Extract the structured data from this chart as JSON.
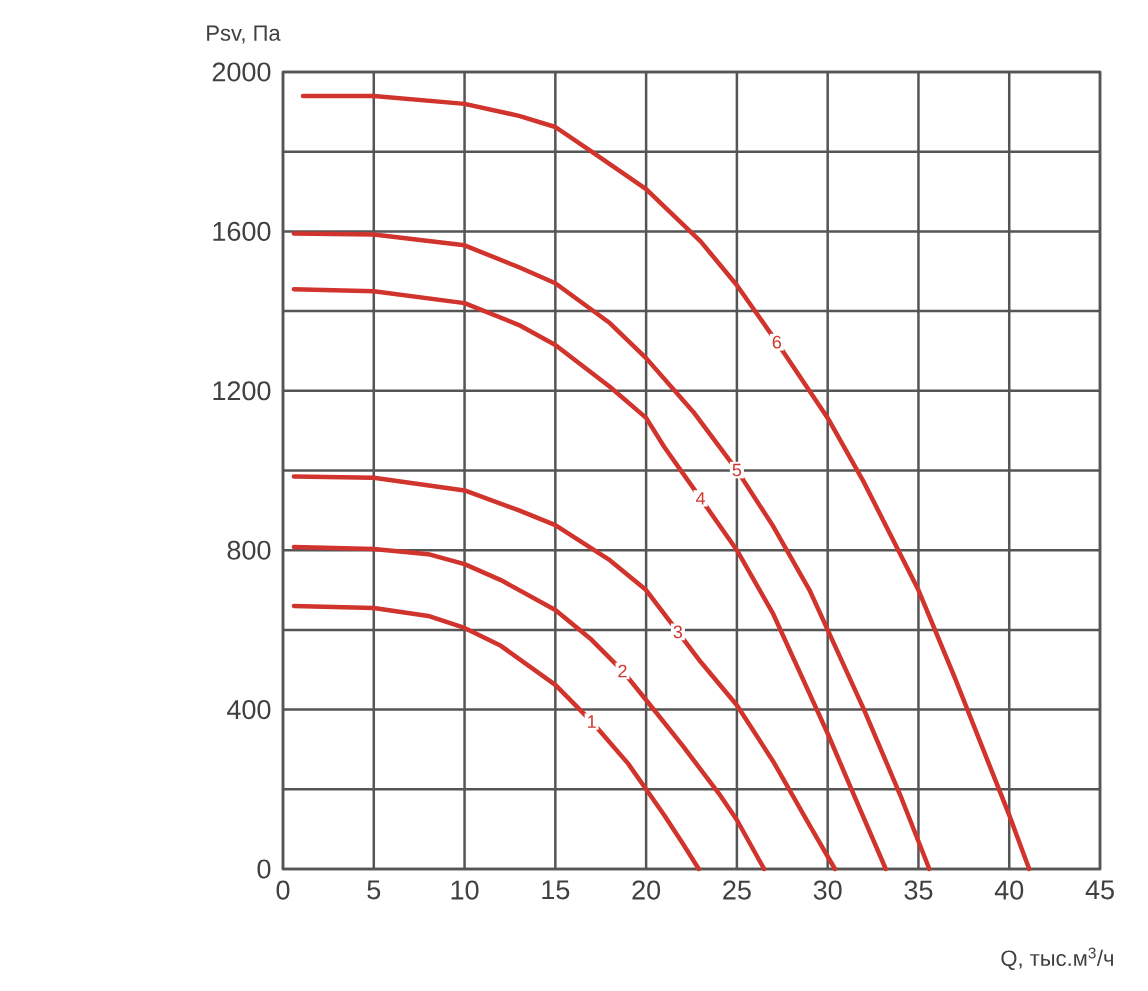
{
  "chart_data": {
    "type": "line",
    "xlabel": "Q, тыс.м$^{3}$/ч",
    "ylabel": "Psv, Па",
    "xlim": [
      0,
      45
    ],
    "ylim": [
      0,
      2000
    ],
    "xticks": [
      0,
      5,
      10,
      15,
      20,
      25,
      30,
      35,
      40,
      45
    ],
    "yticks": [
      0,
      {
        "value": 200,
        "label": null
      },
      400,
      {
        "value": 600,
        "label": null
      },
      800,
      {
        "value": 1000,
        "label": null
      },
      1200,
      {
        "value": 1400,
        "label": null
      },
      1600,
      {
        "value": 1800,
        "label": null
      },
      2000
    ],
    "grid": true,
    "series": [
      {
        "name": "1",
        "color": "#d0342c",
        "x": [
          0.6,
          5,
          8,
          10,
          12,
          15,
          17,
          19,
          20,
          21,
          22,
          22.9
        ],
        "values": [
          660,
          655,
          635,
          605,
          560,
          462,
          370,
          265,
          200,
          135,
          65,
          0
        ]
      },
      {
        "name": "2",
        "color": "#d0342c",
        "x": [
          0.6,
          5,
          8,
          10,
          12,
          15,
          17,
          18.7,
          20,
          22,
          24,
          25,
          26.5
        ],
        "values": [
          808,
          803,
          790,
          765,
          725,
          650,
          575,
          497,
          424,
          310,
          190,
          123,
          0
        ]
      },
      {
        "name": "3",
        "color": "#d0342c",
        "x": [
          0.6,
          5,
          10,
          13,
          15,
          18,
          20,
          21.75,
          23,
          25,
          27,
          29,
          30.4
        ],
        "values": [
          985,
          982,
          950,
          900,
          863,
          775,
          700,
          595,
          520,
          411,
          270,
          110,
          0
        ]
      },
      {
        "name": "4",
        "color": "#d0342c",
        "x": [
          0.6,
          5,
          10,
          13,
          15,
          18,
          20,
          21,
          23,
          25,
          27,
          29,
          30,
          31.5,
          33.2
        ],
        "values": [
          1455,
          1450,
          1420,
          1365,
          1315,
          1210,
          1132,
          1059,
          930,
          800,
          640,
          440,
          340,
          180,
          0
        ]
      },
      {
        "name": "5",
        "color": "#d0342c",
        "x": [
          0.6,
          5,
          10,
          13,
          15,
          18,
          20,
          22.6,
          25,
          27,
          29,
          30,
          32,
          34,
          35.6
        ],
        "values": [
          1595,
          1592,
          1565,
          1510,
          1470,
          1370,
          1282,
          1147,
          1001,
          860,
          700,
          600,
          400,
          185,
          0
        ]
      },
      {
        "name": "6",
        "color": "#d0342c",
        "x": [
          1.1,
          5,
          10,
          13,
          15,
          17,
          20,
          23,
          25,
          27.2,
          30,
          32,
          34,
          35,
          37,
          39,
          40,
          41.1
        ],
        "values": [
          1940,
          1940,
          1920,
          1890,
          1862,
          1800,
          1706,
          1575,
          1465,
          1322,
          1132,
          970,
          790,
          700,
          480,
          250,
          135,
          0
        ]
      }
    ]
  }
}
